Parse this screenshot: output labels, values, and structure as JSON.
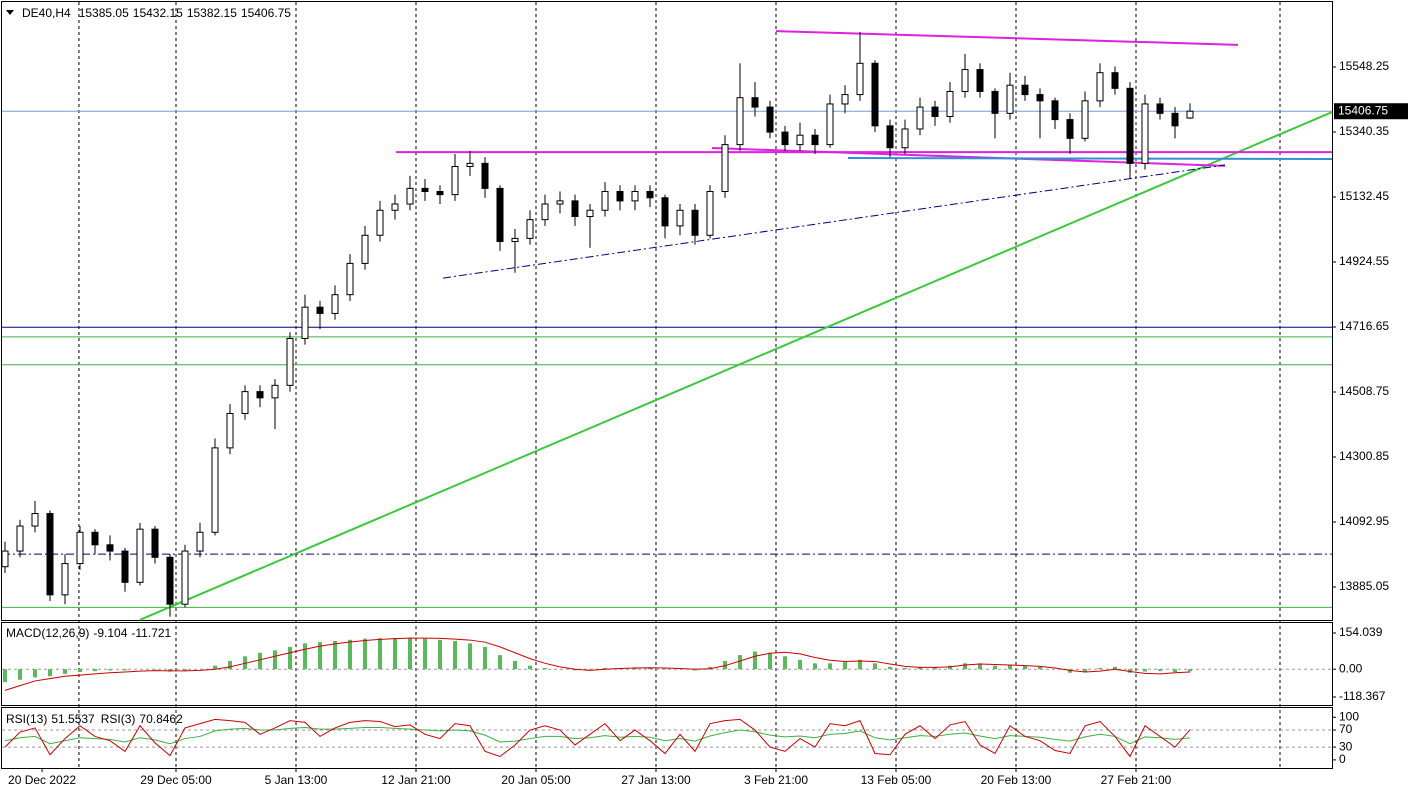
{
  "chart_data": {
    "type": "candlestick",
    "symbol": "DE40,H4",
    "candles": [
      [
        13950,
        14030,
        13930,
        14000
      ],
      [
        14000,
        14100,
        13980,
        14080
      ],
      [
        14080,
        14160,
        14060,
        14120
      ],
      [
        14120,
        14130,
        13840,
        13860
      ],
      [
        13860,
        13990,
        13830,
        13960
      ],
      [
        13960,
        14080,
        13940,
        14060
      ],
      [
        14060,
        14070,
        13990,
        14020
      ],
      [
        14020,
        14050,
        13970,
        14000
      ],
      [
        14000,
        14010,
        13870,
        13900
      ],
      [
        13900,
        14090,
        13890,
        14070
      ],
      [
        14070,
        14080,
        13960,
        13980
      ],
      [
        13980,
        13990,
        13790,
        13830
      ],
      [
        13830,
        14020,
        13820,
        14000
      ],
      [
        14000,
        14090,
        13980,
        14060
      ],
      [
        14060,
        14360,
        14050,
        14330
      ],
      [
        14330,
        14470,
        14310,
        14440
      ],
      [
        14440,
        14530,
        14420,
        14510
      ],
      [
        14510,
        14530,
        14460,
        14490
      ],
      [
        14490,
        14550,
        14390,
        14530
      ],
      [
        14530,
        14700,
        14510,
        14680
      ],
      [
        14680,
        14820,
        14660,
        14780
      ],
      [
        14780,
        14800,
        14710,
        14760
      ],
      [
        14760,
        14850,
        14740,
        14820
      ],
      [
        14820,
        14950,
        14800,
        14920
      ],
      [
        14920,
        15040,
        14900,
        15010
      ],
      [
        15010,
        15120,
        14990,
        15090
      ],
      [
        15090,
        15140,
        15060,
        15110
      ],
      [
        15110,
        15200,
        15090,
        15160
      ],
      [
        15160,
        15190,
        15120,
        15150
      ],
      [
        15150,
        15170,
        15110,
        15140
      ],
      [
        15140,
        15270,
        15120,
        15230
      ],
      [
        15230,
        15280,
        15200,
        15240
      ],
      [
        15240,
        15260,
        15130,
        15160
      ],
      [
        15160,
        15170,
        14960,
        14990
      ],
      [
        14990,
        15030,
        14890,
        15000
      ],
      [
        15000,
        15090,
        14980,
        15060
      ],
      [
        15060,
        15140,
        15040,
        15110
      ],
      [
        15110,
        15150,
        15080,
        15120
      ],
      [
        15120,
        15140,
        15040,
        15070
      ],
      [
        15070,
        15110,
        14970,
        15090
      ],
      [
        15090,
        15180,
        15070,
        15150
      ],
      [
        15150,
        15170,
        15090,
        15120
      ],
      [
        15120,
        15170,
        15090,
        15150
      ],
      [
        15150,
        15170,
        15100,
        15130
      ],
      [
        15130,
        15140,
        15000,
        15040
      ],
      [
        15040,
        15110,
        15010,
        15090
      ],
      [
        15090,
        15110,
        14980,
        15010
      ],
      [
        15010,
        15170,
        15000,
        15150
      ],
      [
        15150,
        15330,
        15130,
        15300
      ],
      [
        15300,
        15560,
        15280,
        15450
      ],
      [
        15450,
        15500,
        15390,
        15420
      ],
      [
        15420,
        15440,
        15320,
        15340
      ],
      [
        15340,
        15360,
        15280,
        15300
      ],
      [
        15300,
        15370,
        15280,
        15330
      ],
      [
        15330,
        15350,
        15270,
        15300
      ],
      [
        15300,
        15460,
        15290,
        15430
      ],
      [
        15430,
        15490,
        15400,
        15460
      ],
      [
        15460,
        15660,
        15440,
        15560
      ],
      [
        15560,
        15570,
        15340,
        15360
      ],
      [
        15360,
        15380,
        15260,
        15290
      ],
      [
        15290,
        15380,
        15270,
        15350
      ],
      [
        15350,
        15450,
        15330,
        15420
      ],
      [
        15420,
        15440,
        15360,
        15390
      ],
      [
        15390,
        15500,
        15370,
        15470
      ],
      [
        15470,
        15590,
        15450,
        15540
      ],
      [
        15540,
        15560,
        15450,
        15470
      ],
      [
        15470,
        15480,
        15320,
        15400
      ],
      [
        15400,
        15530,
        15380,
        15490
      ],
      [
        15490,
        15520,
        15440,
        15460
      ],
      [
        15460,
        15480,
        15320,
        15440
      ],
      [
        15440,
        15450,
        15350,
        15380
      ],
      [
        15380,
        15400,
        15270,
        15320
      ],
      [
        15320,
        15470,
        15310,
        15440
      ],
      [
        15440,
        15560,
        15420,
        15530
      ],
      [
        15530,
        15550,
        15460,
        15480
      ],
      [
        15480,
        15500,
        15190,
        15240
      ],
      [
        15240,
        15460,
        15220,
        15430
      ],
      [
        15430,
        15450,
        15380,
        15400
      ],
      [
        15400,
        15420,
        15320,
        15360
      ],
      [
        15385.05,
        15432.15,
        15382.15,
        15406.75
      ]
    ],
    "bull_color": "#ffffff",
    "bear_color": "#000000",
    "wick_color": "#000000",
    "price_line_color": "#7b9ccf",
    "xlim": [
      -0.3333,
      88.4667
    ],
    "xgrid": [
      4.93,
      11.4,
      19.4,
      27.4,
      35.4,
      43.4,
      51.4,
      59.4,
      67.4,
      75.4,
      85
    ],
    "xticks": [
      {
        "value": 2.47,
        "label": "20 Dec 2022"
      },
      {
        "value": 11.4,
        "label": "29 Dec 05:00"
      },
      {
        "value": 19.4,
        "label": "5 Jan 13:00"
      },
      {
        "value": 27.4,
        "label": "12 Jan 21:00"
      },
      {
        "value": 35.4,
        "label": "20 Jan 05:00"
      },
      {
        "value": 43.4,
        "label": "27 Jan 13:00"
      },
      {
        "value": 51.4,
        "label": "3 Feb 21:00"
      },
      {
        "value": 59.4,
        "label": "13 Feb 05:00"
      },
      {
        "value": 67.4,
        "label": "20 Feb 13:00"
      },
      {
        "value": 75.4,
        "label": "27 Feb 21:00"
      }
    ],
    "ylim": [
      13779.5,
      15762.5
    ],
    "yticks": [
      15548.25,
      15340.35,
      15132.45,
      14924.55,
      14716.65,
      14508.75,
      14300.85,
      14092.95,
      13885.05
    ],
    "levels": [
      {
        "price": 14716,
        "color": "#000080",
        "style": "solid"
      },
      {
        "price": 14685,
        "color": "#3cb043",
        "style": "solid"
      },
      {
        "price": 14596,
        "color": "#3cb043",
        "style": "solid"
      },
      {
        "price": 13820,
        "color": "#3cb043",
        "style": "solid"
      },
      {
        "price": 13990,
        "color": "#000080",
        "style": "dashdot"
      }
    ],
    "trendlines": [
      {
        "from": [
          9,
          13780
        ],
        "to": [
          88.47,
          15404
        ],
        "color": "#3cc83c",
        "style": "solid"
      },
      {
        "from": [
          51.4,
          15663
        ],
        "to": [
          82.2,
          15619
        ],
        "color": "#e020e0",
        "style": "solid"
      },
      {
        "from": [
          26.07,
          15276
        ],
        "to": [
          88.47,
          15276
        ],
        "color": "#e020e0",
        "style": "solid"
      },
      {
        "from": [
          47.13,
          15289
        ],
        "to": [
          81.33,
          15232
        ],
        "color": "#e020e0",
        "style": "solid"
      },
      {
        "from": [
          56.2,
          15257
        ],
        "to": [
          88.47,
          15254
        ],
        "color": "#3090d0",
        "style": "solid"
      },
      {
        "from": [
          29.2,
          14873
        ],
        "to": [
          81.33,
          15235
        ],
        "color": "#000080",
        "style": "dashdot"
      }
    ],
    "macd": {
      "name": "MACD(12,26,9)",
      "histogram_color": "#5cb85c",
      "signal_color": "#cc0000",
      "histogram": [
        -55,
        -45,
        -35,
        -30,
        -20,
        -12,
        -8,
        -5,
        -5,
        0,
        -2,
        -10,
        -5,
        0,
        15,
        35,
        55,
        70,
        80,
        95,
        110,
        115,
        120,
        125,
        130,
        132,
        133,
        134,
        130,
        125,
        120,
        110,
        95,
        60,
        35,
        15,
        5,
        0,
        -5,
        -2,
        5,
        5,
        8,
        8,
        2,
        0,
        -5,
        10,
        35,
        60,
        75,
        70,
        55,
        40,
        25,
        25,
        30,
        40,
        25,
        10,
        5,
        10,
        10,
        15,
        25,
        25,
        15,
        20,
        15,
        10,
        0,
        -15,
        -10,
        5,
        10,
        -15,
        -10,
        -8,
        -12,
        -9.104
      ],
      "signal": [
        -90,
        -70,
        -50,
        -40,
        -30,
        -25,
        -20,
        -15,
        -12,
        -8,
        -6,
        -7,
        -7,
        -5,
        0,
        10,
        25,
        40,
        55,
        70,
        85,
        98,
        108,
        116,
        122,
        127,
        130,
        132,
        132,
        131,
        128,
        124,
        115,
        95,
        70,
        45,
        25,
        10,
        0,
        -5,
        0,
        3,
        5,
        6,
        5,
        3,
        0,
        2,
        15,
        35,
        55,
        68,
        72,
        65,
        50,
        38,
        33,
        35,
        33,
        22,
        12,
        8,
        8,
        10,
        18,
        22,
        20,
        18,
        15,
        12,
        5,
        -5,
        -12,
        -8,
        0,
        -10,
        -18,
        -20,
        -15,
        -11.721
      ],
      "ylim": [
        -152.4,
        200.9
      ],
      "yticks": [
        154.039,
        {
          "value": 0,
          "label": "0.00"
        },
        -118.367
      ],
      "levels": [
        0
      ]
    },
    "rsi": {
      "series": [
        {
          "name": "RSI(13)",
          "color": "#3cb043",
          "values": [
            45,
            52,
            55,
            38,
            45,
            52,
            50,
            48,
            42,
            52,
            47,
            38,
            50,
            55,
            68,
            72,
            74,
            70,
            70,
            74,
            76,
            72,
            72,
            74,
            76,
            76,
            74,
            72,
            70,
            68,
            70,
            68,
            58,
            42,
            44,
            50,
            55,
            55,
            50,
            52,
            57,
            53,
            55,
            53,
            45,
            50,
            44,
            56,
            64,
            70,
            66,
            58,
            54,
            56,
            52,
            60,
            62,
            68,
            52,
            47,
            52,
            57,
            55,
            60,
            63,
            56,
            50,
            57,
            55,
            53,
            48,
            44,
            54,
            60,
            55,
            38,
            54,
            52,
            48,
            51.5537
          ]
        },
        {
          "name": "RSI(3)",
          "color": "#cc0000",
          "values": [
            30,
            65,
            75,
            12,
            50,
            80,
            55,
            45,
            20,
            80,
            40,
            10,
            75,
            85,
            95,
            92,
            88,
            60,
            75,
            92,
            88,
            55,
            75,
            88,
            92,
            90,
            78,
            82,
            60,
            50,
            85,
            80,
            20,
            8,
            35,
            70,
            80,
            70,
            35,
            60,
            85,
            45,
            70,
            45,
            15,
            60,
            20,
            85,
            92,
            95,
            70,
            30,
            20,
            50,
            30,
            85,
            80,
            92,
            15,
            12,
            60,
            80,
            50,
            82,
            90,
            35,
            15,
            80,
            55,
            45,
            22,
            15,
            80,
            90,
            55,
            8,
            80,
            55,
            30,
            70.8462
          ]
        }
      ],
      "ylim": [
        -19,
        124
      ],
      "yticks": [
        100,
        70,
        30,
        0
      ],
      "levels": [
        70,
        30
      ]
    }
  }
}
